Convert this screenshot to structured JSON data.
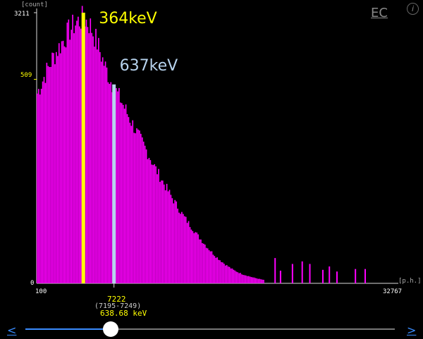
{
  "chart_data": {
    "type": "bar",
    "ylabel": "[count]",
    "xlabel": "[p.h.]",
    "x_min_label": "100",
    "x_max_label": "32767",
    "xlim": [
      100,
      32767
    ],
    "y_max_label": "3211",
    "y_mid_label": "509",
    "y_zero_label": "0",
    "ylim": [
      0,
      3211
    ],
    "color": "#ff00ff",
    "annotations": [
      {
        "label": "364keV",
        "color": "#ffff00",
        "x": 4400,
        "y": 3211
      },
      {
        "label": "637keV",
        "color": "#b7d3ee",
        "x": 7222,
        "y": 2360
      }
    ],
    "cursor": {
      "channel": "7222",
      "range": "(7195-7249)",
      "energy": "638.68 keV",
      "channel_color": "#ffff00",
      "range_color": "#cccccc",
      "energy_color": "#ffff00"
    },
    "envelope": [
      [
        100,
        2300
      ],
      [
        800,
        2520
      ],
      [
        1500,
        2720
      ],
      [
        2300,
        2900
      ],
      [
        3000,
        3050
      ],
      [
        3700,
        3160
      ],
      [
        4400,
        3211
      ],
      [
        5000,
        3120
      ],
      [
        5600,
        2920
      ],
      [
        6200,
        2680
      ],
      [
        6800,
        2470
      ],
      [
        7222,
        2360
      ],
      [
        7800,
        2220
      ],
      [
        8500,
        2030
      ],
      [
        9300,
        1820
      ],
      [
        10200,
        1600
      ],
      [
        11000,
        1390
      ],
      [
        11800,
        1200
      ],
      [
        12600,
        1020
      ],
      [
        13400,
        850
      ],
      [
        14200,
        700
      ],
      [
        15000,
        560
      ],
      [
        15800,
        430
      ],
      [
        16600,
        320
      ],
      [
        17400,
        230
      ],
      [
        18200,
        160
      ],
      [
        19000,
        110
      ],
      [
        20000,
        70
      ],
      [
        21000,
        40
      ]
    ],
    "sparse_spikes": [
      [
        22000,
        300
      ],
      [
        22500,
        150
      ],
      [
        23600,
        230
      ],
      [
        24500,
        260
      ],
      [
        25200,
        230
      ],
      [
        26400,
        160
      ],
      [
        27000,
        200
      ],
      [
        27700,
        140
      ],
      [
        29400,
        170
      ],
      [
        30300,
        170
      ]
    ]
  },
  "header": {
    "ec_label": "EC",
    "info_label": "i"
  },
  "footer": {
    "prev_label": "<",
    "next_label": ">",
    "slider_value": 0.22
  }
}
